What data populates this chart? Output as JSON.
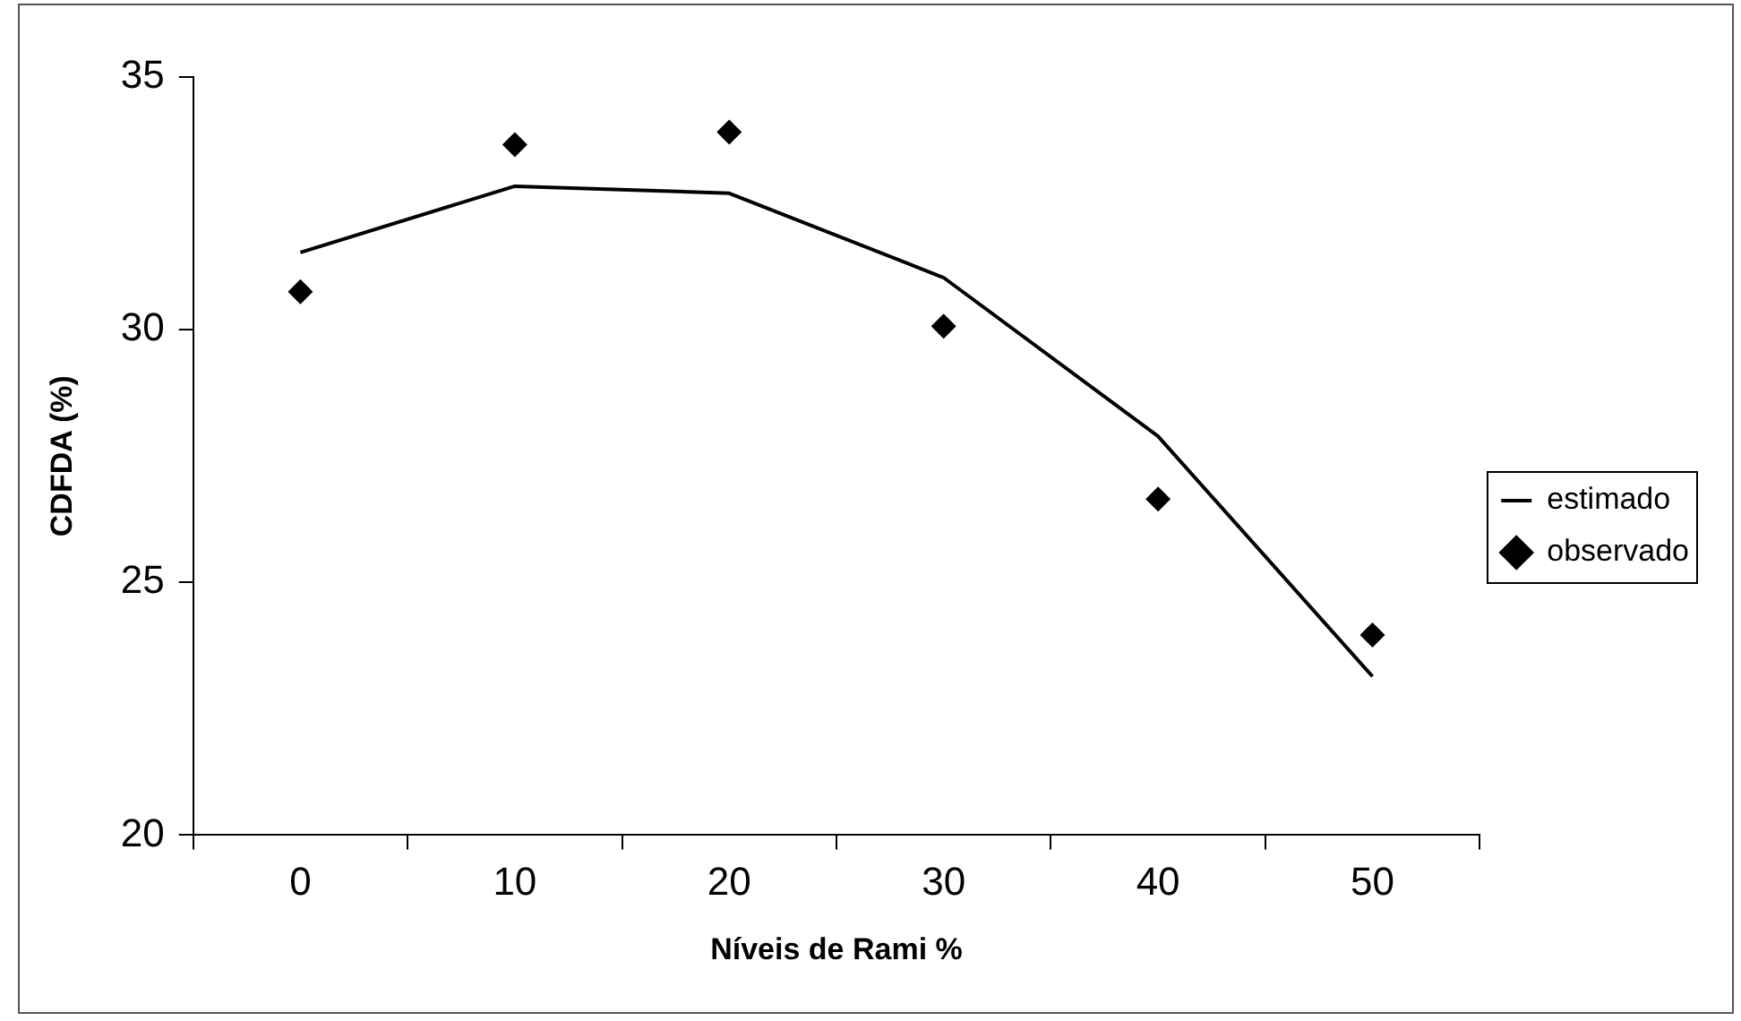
{
  "chart_data": {
    "type": "line",
    "xlabel": "Níveis de Rami %",
    "ylabel": "CDFDA (%)",
    "categories": [
      "0",
      "10",
      "20",
      "30",
      "40",
      "50"
    ],
    "series": [
      {
        "name": "estimado",
        "type": "line",
        "color": "#000000",
        "marker": "none",
        "line_style": "solid",
        "values": [
          31.53,
          32.84,
          32.7,
          31.03,
          27.89,
          23.14
        ]
      },
      {
        "name": "observado",
        "type": "scatter",
        "color": "#000000",
        "marker": "diamond",
        "values": [
          30.75,
          33.66,
          33.91,
          30.07,
          26.65,
          23.96
        ]
      }
    ],
    "ylim": [
      20,
      35
    ],
    "yticks": [
      20,
      25,
      30,
      35
    ],
    "grid": false,
    "legend": "right"
  }
}
